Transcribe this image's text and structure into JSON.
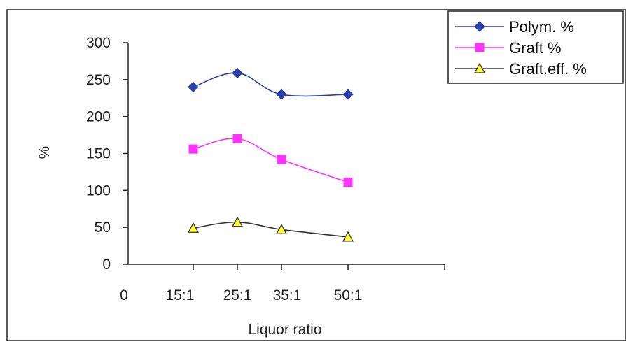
{
  "chart_data": {
    "type": "line",
    "title": "",
    "xlabel": "Liquor ratio",
    "ylabel": "%",
    "categories": [
      "0",
      "15:1",
      "25:1",
      "35:1",
      "50:1"
    ],
    "ylim": [
      0,
      300
    ],
    "yticks": [
      0,
      50,
      100,
      150,
      200,
      250,
      300
    ],
    "grid": false,
    "legend_position": "top-right",
    "series": [
      {
        "name": "Polym. %",
        "marker": "diamond",
        "color": "#2b3fa8",
        "points": [
          {
            "x": "15:1",
            "y": 240
          },
          {
            "x": "25:1",
            "y": 259
          },
          {
            "x": "35:1",
            "y": 230
          },
          {
            "x": "50:1",
            "y": 230
          }
        ]
      },
      {
        "name": "Graft %",
        "marker": "square",
        "color": "#ff33ff",
        "points": [
          {
            "x": "15:1",
            "y": 156
          },
          {
            "x": "25:1",
            "y": 170
          },
          {
            "x": "35:1",
            "y": 142
          },
          {
            "x": "50:1",
            "y": 111
          }
        ]
      },
      {
        "name": "Graft.eff. %",
        "marker": "triangle",
        "color": "#333333",
        "marker_fill": "#ffff33",
        "points": [
          {
            "x": "15:1",
            "y": 49
          },
          {
            "x": "25:1",
            "y": 57
          },
          {
            "x": "35:1",
            "y": 47
          },
          {
            "x": "50:1",
            "y": 37
          }
        ]
      }
    ]
  }
}
